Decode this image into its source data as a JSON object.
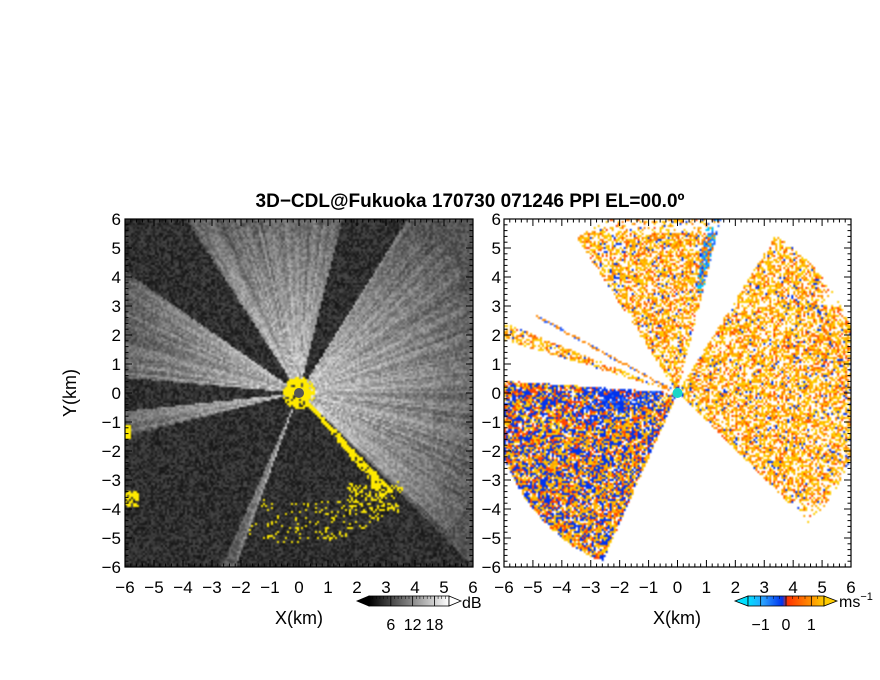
{
  "title": "3D−CDL@Fukuoka 170730 071246 PPI EL=00.0º",
  "chart_data": [
    {
      "type": "heatmap",
      "panel": "left",
      "quantity": "SNR",
      "xlabel": "X(km)",
      "ylabel": "Y(km)",
      "xlim": [
        -6,
        6
      ],
      "ylim": [
        -6,
        6
      ],
      "ticks": [
        -6,
        -5,
        -4,
        -3,
        -2,
        -1,
        0,
        1,
        2,
        3,
        4,
        5,
        6
      ],
      "grid": false,
      "colorbar": {
        "unit": "dB",
        "tick_labels": [
          "6",
          "12",
          "18"
        ],
        "range": [
          0,
          22
        ],
        "colors": [
          "#000000",
          "#ffffff"
        ]
      },
      "highlight_color": "#ffea00",
      "blanked_sectors": [
        {
          "from_deg": 123,
          "to_deg": 145,
          "level": "noise"
        },
        {
          "from_deg": 175,
          "to_deg": 186,
          "level": "noise"
        },
        {
          "from_deg": 194,
          "to_deg": 246,
          "level": "noise"
        },
        {
          "from_deg": 250,
          "to_deg": 315,
          "level": "noise"
        },
        {
          "from_deg": 58,
          "to_deg": 76,
          "level": "noise"
        }
      ]
    },
    {
      "type": "heatmap",
      "panel": "right",
      "quantity": "Doppler velocity",
      "xlabel": "X(km)",
      "ylabel": "",
      "xlim": [
        -6,
        6
      ],
      "ylim": [
        -6,
        6
      ],
      "ticks": [
        -6,
        -5,
        -4,
        -3,
        -2,
        -1,
        0,
        1,
        2,
        3,
        4,
        5,
        6
      ],
      "grid": false,
      "colorbar": {
        "unit": "ms",
        "unit_exponent": "−1",
        "tick_labels": [
          "−1",
          "0",
          "1"
        ],
        "range": [
          -1.5,
          1.5
        ],
        "colors": [
          "#00e0ff",
          "#0033ee",
          "#ff4400",
          "#ffcc00"
        ]
      },
      "blanked_sectors": [
        {
          "from_deg": 123,
          "to_deg": 158
        },
        {
          "from_deg": 163,
          "to_deg": 176
        },
        {
          "from_deg": 246,
          "to_deg": 315
        },
        {
          "from_deg": 58,
          "to_deg": 76
        }
      ]
    }
  ]
}
